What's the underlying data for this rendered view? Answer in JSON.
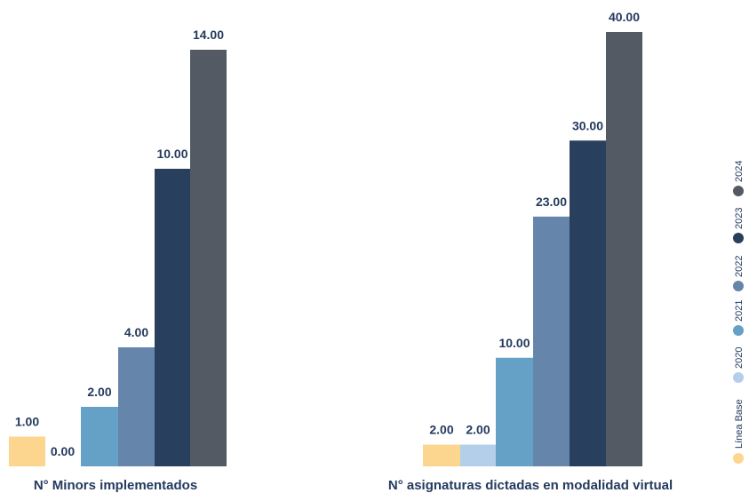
{
  "legend": [
    {
      "label": "Línea Base",
      "color": "#fcd68e"
    },
    {
      "label": "2020",
      "color": "#b3cfea"
    },
    {
      "label": "2021",
      "color": "#65a0c6"
    },
    {
      "label": "2022",
      "color": "#6585aa"
    },
    {
      "label": "2023",
      "color": "#293f5e"
    },
    {
      "label": "2024",
      "color": "#535a64"
    }
  ],
  "chart_data": [
    {
      "type": "bar",
      "title": "N° Minors implementados",
      "categories": [
        "Línea Base",
        "2020",
        "2021",
        "2022",
        "2023",
        "2024"
      ],
      "values": [
        1.0,
        0.0,
        2.0,
        4.0,
        10.0,
        14.0
      ],
      "value_labels": [
        "1.00",
        "0.00",
        "2.00",
        "4.00",
        "10.00",
        "14.00"
      ],
      "grid": false,
      "legend_position": "right"
    },
    {
      "type": "bar",
      "title": "N° asignaturas dictadas en modalidad virtual",
      "categories": [
        "Línea Base",
        "2020",
        "2021",
        "2022",
        "2023",
        "2024"
      ],
      "values": [
        2.0,
        2.0,
        10.0,
        23.0,
        30.0,
        40.0
      ],
      "value_labels": [
        "2.00",
        "2.00",
        "10.00",
        "23.00",
        "30.00",
        "40.00"
      ],
      "grid": false,
      "legend_position": "right"
    }
  ]
}
